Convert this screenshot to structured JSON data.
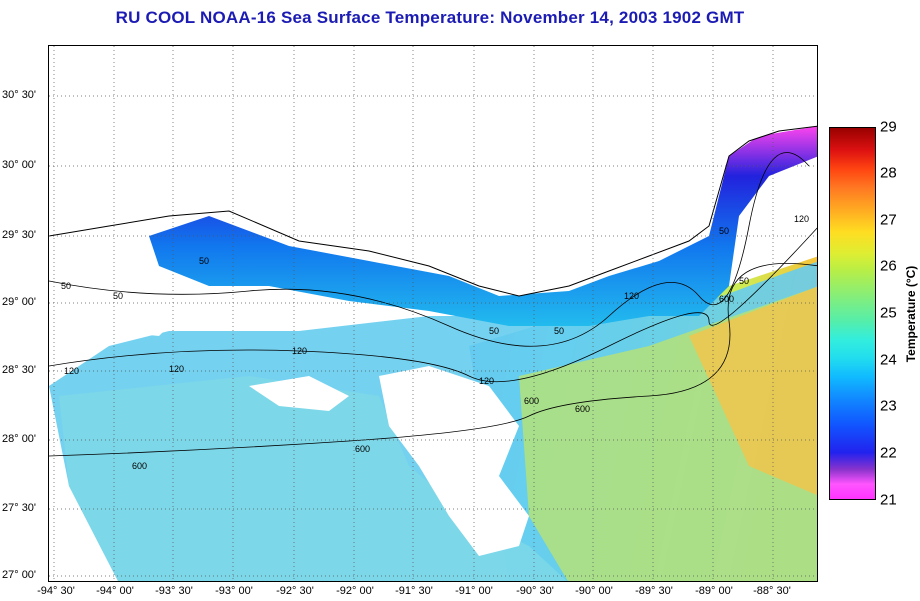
{
  "title": "RU COOL  NOAA-16  Sea Surface Temperature:  November 14, 2003 1902 GMT",
  "map": {
    "latitude_labels": [
      "30° 30'",
      "30° 00'",
      "29° 30'",
      "29° 00'",
      "28° 30'",
      "28° 00'",
      "27° 30'",
      "27° 00'"
    ],
    "longitude_labels": [
      "-94° 30'",
      "-94° 00'",
      "-93° 30'",
      "-93° 00'",
      "-92° 30'",
      "-92° 00'",
      "-91° 30'",
      "-91° 00'",
      "-90° 30'",
      "-90° 00'",
      "-89° 30'",
      "-89° 00'",
      "-88° 30'"
    ],
    "contour_labels": [
      "50",
      "50",
      "50",
      "50",
      "50",
      "50",
      "50",
      "120",
      "120",
      "120",
      "120",
      "120",
      "600",
      "600",
      "600",
      "600",
      "600",
      "120"
    ]
  },
  "colorbar": {
    "label": "Temperature (°C)",
    "ticks": [
      "29",
      "28",
      "27",
      "26",
      "25",
      "24",
      "23",
      "22",
      "21"
    ],
    "colors": {
      "min": "#ff33ff",
      "low": "#2222ee",
      "mid": "#33eedd",
      "high": "#ffdd22",
      "max": "#990000"
    }
  }
}
